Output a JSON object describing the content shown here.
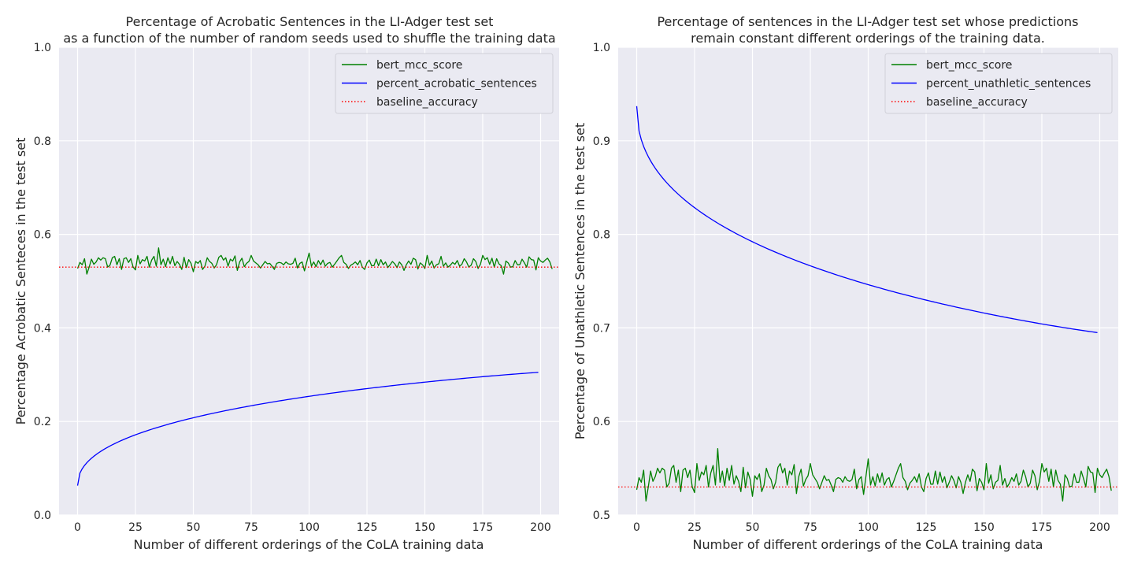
{
  "chart_data": [
    {
      "type": "line",
      "title": "Percentage of Acrobatic Sentences in the LI-Adger test set",
      "subtitle": "as a function of the number of random seeds used to shuffle the training data",
      "xlabel": "Number of different orderings of the CoLA training data",
      "ylabel": "Percentage Acrobatic Senteces in the test set",
      "xlim": [
        -8,
        208
      ],
      "ylim": [
        0.0,
        1.0
      ],
      "xticks": [
        0,
        25,
        50,
        75,
        100,
        125,
        150,
        175,
        200
      ],
      "yticks": [
        0.0,
        0.2,
        0.4,
        0.6,
        0.8,
        1.0
      ],
      "ytick_labels": [
        "0.0",
        "0.2",
        "0.4",
        "0.6",
        "0.8",
        "1.0"
      ],
      "grid": true,
      "legend_position": "top-right",
      "series": [
        {
          "name": "bert_mcc_score",
          "color": "#008000",
          "style": "solid",
          "x_start": 0,
          "values": [
            0.527,
            0.54,
            0.535,
            0.548,
            0.515,
            0.53,
            0.547,
            0.536,
            0.541,
            0.55,
            0.545,
            0.55,
            0.548,
            0.53,
            0.534,
            0.55,
            0.553,
            0.535,
            0.548,
            0.525,
            0.548,
            0.55,
            0.54,
            0.548,
            0.53,
            0.524,
            0.555,
            0.537,
            0.546,
            0.543,
            0.553,
            0.53,
            0.545,
            0.553,
            0.532,
            0.571,
            0.535,
            0.547,
            0.531,
            0.55,
            0.537,
            0.553,
            0.533,
            0.542,
            0.536,
            0.525,
            0.551,
            0.529,
            0.546,
            0.538,
            0.52,
            0.542,
            0.538,
            0.544,
            0.525,
            0.532,
            0.55,
            0.542,
            0.538,
            0.528,
            0.535,
            0.551,
            0.555,
            0.545,
            0.55,
            0.532,
            0.547,
            0.543,
            0.554,
            0.523,
            0.541,
            0.549,
            0.531,
            0.538,
            0.542,
            0.555,
            0.543,
            0.539,
            0.535,
            0.528,
            0.535,
            0.542,
            0.537,
            0.538,
            0.532,
            0.525,
            0.538,
            0.54,
            0.539,
            0.535,
            0.541,
            0.537,
            0.536,
            0.538,
            0.549,
            0.528,
            0.538,
            0.541,
            0.522,
            0.541,
            0.56,
            0.532,
            0.541,
            0.531,
            0.544,
            0.535,
            0.545,
            0.532,
            0.538,
            0.54,
            0.53,
            0.536,
            0.543,
            0.55,
            0.555,
            0.54,
            0.536,
            0.527,
            0.534,
            0.537,
            0.541,
            0.535,
            0.544,
            0.53,
            0.525,
            0.539,
            0.545,
            0.533,
            0.533,
            0.547,
            0.533,
            0.546,
            0.535,
            0.541,
            0.529,
            0.535,
            0.542,
            0.537,
            0.529,
            0.541,
            0.535,
            0.523,
            0.535,
            0.543,
            0.536,
            0.549,
            0.546,
            0.526,
            0.539,
            0.535,
            0.527,
            0.555,
            0.534,
            0.543,
            0.528,
            0.535,
            0.537,
            0.553,
            0.532,
            0.539,
            0.53,
            0.534,
            0.54,
            0.536,
            0.544,
            0.532,
            0.536,
            0.548,
            0.541,
            0.53,
            0.534,
            0.548,
            0.542,
            0.527,
            0.536,
            0.555,
            0.546,
            0.55,
            0.536,
            0.549,
            0.53,
            0.548,
            0.537,
            0.533,
            0.515,
            0.543,
            0.539,
            0.53,
            0.531,
            0.544,
            0.535,
            0.535,
            0.547,
            0.539,
            0.53,
            0.552,
            0.546,
            0.545,
            0.524,
            0.55,
            0.543,
            0.54,
            0.545,
            0.549,
            0.541,
            0.526
          ]
        },
        {
          "name": "percent_acrobatic_sentences",
          "color": "#0000ff",
          "style": "solid",
          "x_start": 0,
          "decay": {
            "start": 0.063,
            "end": 0.305,
            "form": "sqrt-saturating"
          }
        },
        {
          "name": "baseline_accuracy",
          "color": "#ff0000",
          "style": "dotted",
          "hline": 0.53
        }
      ]
    },
    {
      "type": "line",
      "title": "Percentage of sentences in the LI-Adger test set whose predictions",
      "subtitle": "remain constant different orderings of the training data.",
      "xlabel": "Number of different orderings of the CoLA training data",
      "ylabel": "Percentage of Unathletic Sentences in the test set",
      "xlim": [
        -8,
        208
      ],
      "ylim": [
        0.5,
        1.0
      ],
      "xticks": [
        0,
        25,
        50,
        75,
        100,
        125,
        150,
        175,
        200
      ],
      "yticks": [
        0.5,
        0.6,
        0.7,
        0.8,
        0.9,
        1.0
      ],
      "ytick_labels": [
        "0.5",
        "0.6",
        "0.7",
        "0.8",
        "0.9",
        "1.0"
      ],
      "grid": true,
      "legend_position": "top-right",
      "series": [
        {
          "name": "bert_mcc_score",
          "color": "#008000",
          "style": "solid",
          "x_start": 0,
          "shared_values_with": "chart_data.0.series.0"
        },
        {
          "name": "percent_unathletic_sentences",
          "color": "#0000ff",
          "style": "solid",
          "x_start": 0,
          "decay": {
            "start": 0.937,
            "end": 0.695,
            "form": "sqrt-saturating"
          }
        },
        {
          "name": "baseline_accuracy",
          "color": "#ff0000",
          "style": "dotted",
          "hline": 0.53
        }
      ]
    }
  ]
}
